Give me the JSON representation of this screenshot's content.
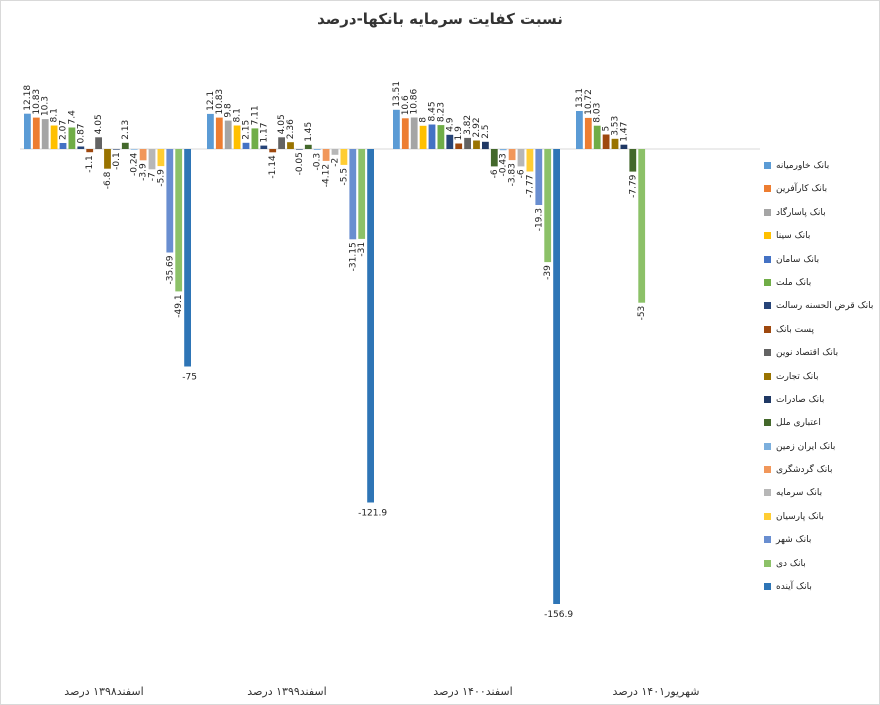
{
  "chart_data": {
    "type": "bar",
    "title": "نسبت کفایت سرمایه بانکها-درصد",
    "categories": [
      "اسفند۱۳۹۸ درصد",
      "اسفند۱۳۹۹ درصد",
      "اسفند۱۴۰۰ درصد",
      "شهریور۱۴۰۱ درصد"
    ],
    "legend_position": "right",
    "grid": false,
    "series": [
      {
        "name": "بانک خاورمیانه",
        "color": "#5b9bd5",
        "values": [
          12.18,
          12.1,
          13.51,
          13.1
        ]
      },
      {
        "name": "بانک کارآفرین",
        "color": "#ed7d31",
        "values": [
          10.83,
          10.83,
          10.6,
          10.72
        ]
      },
      {
        "name": "بانک پاسارگاد",
        "color": "#a5a5a5",
        "values": [
          10.3,
          9.8,
          10.86,
          null
        ]
      },
      {
        "name": "بانک سینا",
        "color": "#ffc000",
        "values": [
          8.1,
          8.1,
          8,
          null
        ]
      },
      {
        "name": "بانک سامان",
        "color": "#4472c4",
        "values": [
          2.07,
          2.15,
          8.45,
          null
        ]
      },
      {
        "name": "بانک ملت",
        "color": "#70ad47",
        "values": [
          7.4,
          7.11,
          8.23,
          8.03
        ]
      },
      {
        "name": "بانک قرض الحسنه رسالت",
        "color": "#264478",
        "values": [
          0.87,
          1.17,
          4.9,
          null
        ]
      },
      {
        "name": "پست بانک",
        "color": "#9e480e",
        "values": [
          -1.1,
          -1.14,
          1.9,
          5
        ]
      },
      {
        "name": "بانک اقتصاد نوین",
        "color": "#636363",
        "values": [
          4.05,
          4.05,
          3.82,
          null
        ]
      },
      {
        "name": "بانک تجارت",
        "color": "#997300",
        "values": [
          -6.8,
          2.36,
          2.92,
          3.53
        ]
      },
      {
        "name": "بانک صادرات",
        "color": "#1f3864",
        "values": [
          -0.1,
          -0.05,
          2.5,
          1.47
        ]
      },
      {
        "name": "اعتباری ملل",
        "color": "#43682b",
        "values": [
          2.13,
          1.45,
          -6,
          -7.79
        ]
      },
      {
        "name": "بانک ایران زمین",
        "color": "#7cafdd",
        "values": [
          -0.24,
          -0.3,
          -0.43,
          null
        ]
      },
      {
        "name": "بانک گردشگری",
        "color": "#f1975a",
        "values": [
          -3.9,
          -4.12,
          -3.83,
          null
        ]
      },
      {
        "name": "بانک سرمایه",
        "color": "#b7b7b7",
        "values": [
          -7,
          -2,
          -6,
          null
        ]
      },
      {
        "name": "بانک پارسیان",
        "color": "#ffcd33",
        "values": [
          -5.9,
          -5.5,
          -7.77,
          null
        ]
      },
      {
        "name": "بانک شهر",
        "color": "#698ed0",
        "values": [
          -35.69,
          -31.15,
          -19.3,
          null
        ]
      },
      {
        "name": "بانک دی",
        "color": "#8cc168",
        "values": [
          -49.1,
          -31,
          -39,
          -53
        ]
      },
      {
        "name": "بانک آینده",
        "color": "#2e75b6",
        "values": [
          -75,
          -121.9,
          -156.9,
          null
        ]
      }
    ]
  }
}
